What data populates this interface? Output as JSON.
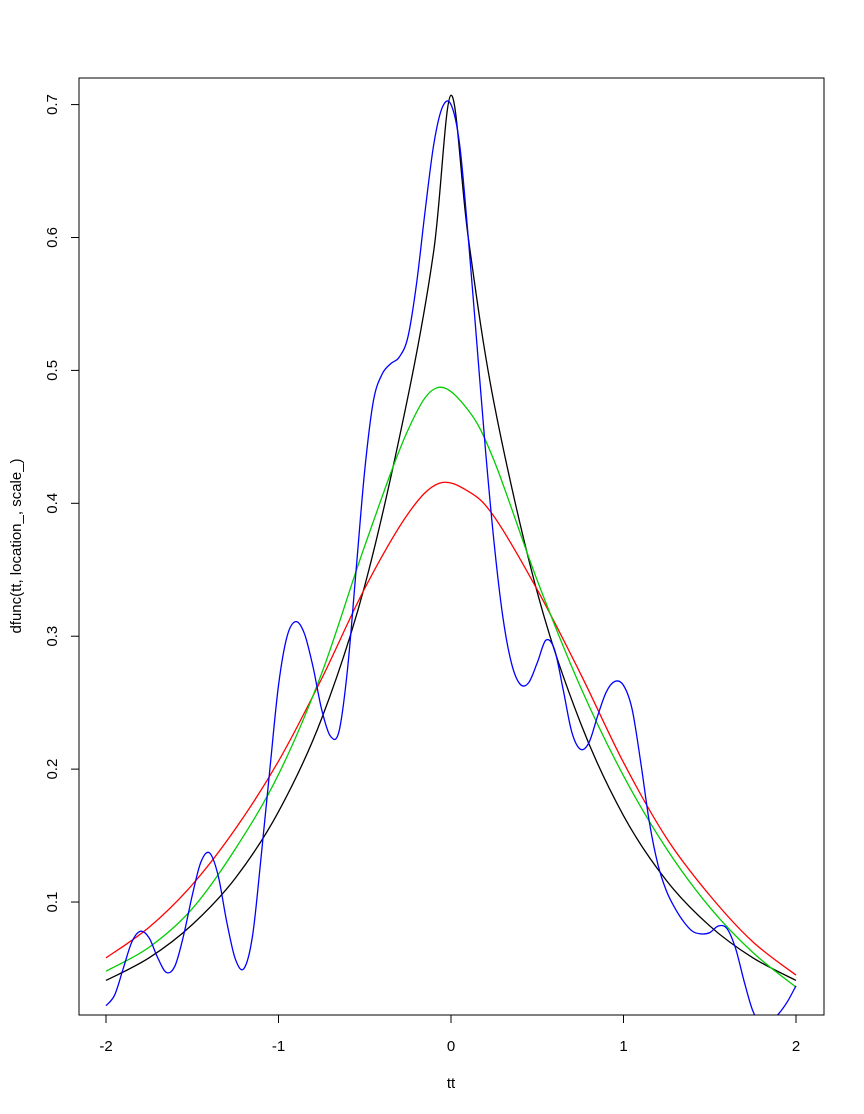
{
  "chart_data": {
    "type": "line",
    "title": "",
    "xlabel": "tt",
    "ylabel": "dfunc(tt, location_, scale_)",
    "xlim": [
      -2,
      2
    ],
    "ylim": [
      0.015,
      0.72
    ],
    "x_ticks": [
      -2,
      -1,
      0,
      1,
      2
    ],
    "x_tick_labels": [
      "-2",
      "-1",
      "0",
      "1",
      "2"
    ],
    "y_ticks": [
      0.1,
      0.2,
      0.3,
      0.4,
      0.5,
      0.6,
      0.7
    ],
    "y_tick_labels": [
      "0.1",
      "0.2",
      "0.3",
      "0.4",
      "0.5",
      "0.6",
      "0.7"
    ],
    "grid": false,
    "legend": "none",
    "series": [
      {
        "name": "black",
        "color": "#000000",
        "points": [
          [
            -2,
            0.041
          ],
          [
            -1.75,
            0.058
          ],
          [
            -1.5,
            0.083
          ],
          [
            -1.25,
            0.118
          ],
          [
            -1.0,
            0.168
          ],
          [
            -0.75,
            0.238
          ],
          [
            -0.5,
            0.338
          ],
          [
            -0.25,
            0.48
          ],
          [
            -0.1,
            0.59
          ],
          [
            0.0,
            0.707
          ],
          [
            0.1,
            0.6
          ],
          [
            0.25,
            0.475
          ],
          [
            0.5,
            0.333
          ],
          [
            0.75,
            0.235
          ],
          [
            1.0,
            0.165
          ],
          [
            1.25,
            0.116
          ],
          [
            1.5,
            0.082
          ],
          [
            1.75,
            0.058
          ],
          [
            2.0,
            0.041
          ]
        ]
      },
      {
        "name": "red",
        "color": "#ff0000",
        "points": [
          [
            -2,
            0.058
          ],
          [
            -1.75,
            0.081
          ],
          [
            -1.5,
            0.113
          ],
          [
            -1.25,
            0.155
          ],
          [
            -1.0,
            0.206
          ],
          [
            -0.75,
            0.268
          ],
          [
            -0.5,
            0.336
          ],
          [
            -0.25,
            0.392
          ],
          [
            -0.07,
            0.415
          ],
          [
            0.1,
            0.409
          ],
          [
            0.25,
            0.39
          ],
          [
            0.5,
            0.335
          ],
          [
            0.75,
            0.272
          ],
          [
            1.0,
            0.205
          ],
          [
            1.25,
            0.148
          ],
          [
            1.5,
            0.105
          ],
          [
            1.75,
            0.07
          ],
          [
            2.0,
            0.045
          ]
        ]
      },
      {
        "name": "green",
        "color": "#00cd00",
        "points": [
          [
            -2,
            0.048
          ],
          [
            -1.75,
            0.066
          ],
          [
            -1.5,
            0.095
          ],
          [
            -1.25,
            0.14
          ],
          [
            -1.0,
            0.196
          ],
          [
            -0.75,
            0.272
          ],
          [
            -0.5,
            0.368
          ],
          [
            -0.25,
            0.455
          ],
          [
            -0.08,
            0.487
          ],
          [
            0.1,
            0.47
          ],
          [
            0.25,
            0.432
          ],
          [
            0.5,
            0.342
          ],
          [
            0.75,
            0.262
          ],
          [
            1.0,
            0.195
          ],
          [
            1.25,
            0.14
          ],
          [
            1.5,
            0.096
          ],
          [
            1.75,
            0.062
          ],
          [
            2.0,
            0.036
          ]
        ]
      },
      {
        "name": "blue",
        "color": "#0000ff",
        "points": [
          [
            -2,
            0.022
          ],
          [
            -1.95,
            0.03
          ],
          [
            -1.9,
            0.05
          ],
          [
            -1.85,
            0.07
          ],
          [
            -1.8,
            0.078
          ],
          [
            -1.75,
            0.073
          ],
          [
            -1.7,
            0.058
          ],
          [
            -1.65,
            0.047
          ],
          [
            -1.6,
            0.052
          ],
          [
            -1.55,
            0.075
          ],
          [
            -1.5,
            0.105
          ],
          [
            -1.45,
            0.13
          ],
          [
            -1.4,
            0.137
          ],
          [
            -1.35,
            0.12
          ],
          [
            -1.3,
            0.085
          ],
          [
            -1.25,
            0.057
          ],
          [
            -1.2,
            0.05
          ],
          [
            -1.15,
            0.075
          ],
          [
            -1.1,
            0.135
          ],
          [
            -1.05,
            0.2
          ],
          [
            -1.0,
            0.263
          ],
          [
            -0.95,
            0.3
          ],
          [
            -0.9,
            0.311
          ],
          [
            -0.85,
            0.302
          ],
          [
            -0.8,
            0.277
          ],
          [
            -0.75,
            0.245
          ],
          [
            -0.7,
            0.225
          ],
          [
            -0.65,
            0.228
          ],
          [
            -0.6,
            0.275
          ],
          [
            -0.55,
            0.35
          ],
          [
            -0.5,
            0.425
          ],
          [
            -0.45,
            0.477
          ],
          [
            -0.4,
            0.497
          ],
          [
            -0.35,
            0.505
          ],
          [
            -0.3,
            0.51
          ],
          [
            -0.25,
            0.525
          ],
          [
            -0.2,
            0.565
          ],
          [
            -0.15,
            0.62
          ],
          [
            -0.1,
            0.67
          ],
          [
            -0.05,
            0.698
          ],
          [
            0.0,
            0.7
          ],
          [
            0.05,
            0.67
          ],
          [
            0.1,
            0.6
          ],
          [
            0.15,
            0.52
          ],
          [
            0.2,
            0.44
          ],
          [
            0.25,
            0.37
          ],
          [
            0.3,
            0.315
          ],
          [
            0.35,
            0.28
          ],
          [
            0.4,
            0.264
          ],
          [
            0.45,
            0.265
          ],
          [
            0.5,
            0.28
          ],
          [
            0.55,
            0.297
          ],
          [
            0.6,
            0.29
          ],
          [
            0.65,
            0.26
          ],
          [
            0.7,
            0.228
          ],
          [
            0.75,
            0.215
          ],
          [
            0.8,
            0.22
          ],
          [
            0.85,
            0.24
          ],
          [
            0.9,
            0.258
          ],
          [
            0.95,
            0.266
          ],
          [
            1.0,
            0.263
          ],
          [
            1.05,
            0.245
          ],
          [
            1.1,
            0.205
          ],
          [
            1.15,
            0.16
          ],
          [
            1.2,
            0.128
          ],
          [
            1.25,
            0.108
          ],
          [
            1.3,
            0.095
          ],
          [
            1.35,
            0.085
          ],
          [
            1.4,
            0.078
          ],
          [
            1.45,
            0.076
          ],
          [
            1.5,
            0.077
          ],
          [
            1.55,
            0.082
          ],
          [
            1.6,
            0.08
          ],
          [
            1.65,
            0.065
          ],
          [
            1.7,
            0.04
          ],
          [
            1.75,
            0.018
          ],
          [
            1.8,
            0.008
          ],
          [
            1.85,
            0.01
          ],
          [
            1.9,
            0.016
          ],
          [
            1.95,
            0.025
          ],
          [
            2.0,
            0.037
          ]
        ]
      }
    ]
  }
}
